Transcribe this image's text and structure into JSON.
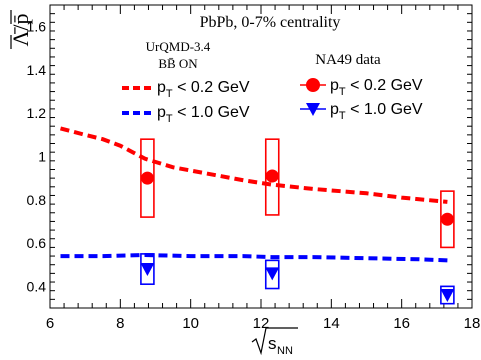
{
  "chart_data": {
    "type": "line",
    "title": "PbPb, 0-7% centrality",
    "ylabel": "Λ̄/p̄",
    "xlabel": "√s_NN",
    "xlim": [
      6,
      18
    ],
    "ylim": [
      0.3,
      1.7
    ],
    "x_ticks": [
      6,
      8,
      10,
      12,
      14,
      16,
      18
    ],
    "y_ticks": [
      0.4,
      0.6,
      0.8,
      1,
      1.2,
      1.4,
      1.6
    ],
    "grid": false,
    "model_legend": {
      "title_line1": "UrQMD-3.4",
      "title_line2": "BB̄ ON",
      "entries": [
        {
          "label_main": "p",
          "label_sub": "T",
          "label_rest": " < 0.2 GeV",
          "color": "#ff0000"
        },
        {
          "label_main": "p",
          "label_sub": "T",
          "label_rest": " < 1.0 GeV",
          "color": "#0000ff"
        }
      ]
    },
    "data_legend": {
      "title": "NA49 data",
      "entries": [
        {
          "label_main": "p",
          "label_sub": "T",
          "label_rest": " < 0.2 GeV",
          "color": "#ff0000",
          "marker": "circle"
        },
        {
          "label_main": "p",
          "label_sub": "T",
          "label_rest": " < 1.0 GeV",
          "color": "#0000ff",
          "marker": "triangle-down"
        }
      ]
    },
    "series": [
      {
        "kind": "model-curve",
        "color": "#ff0000",
        "x": [
          6.3,
          7.0,
          7.5,
          8.0,
          8.7,
          9.5,
          10.5,
          11.5,
          12.3,
          13.5,
          15.0,
          16.0,
          17.3
        ],
        "y": [
          1.13,
          1.1,
          1.08,
          1.05,
          0.99,
          0.95,
          0.92,
          0.89,
          0.87,
          0.85,
          0.83,
          0.81,
          0.79
        ]
      },
      {
        "kind": "model-curve",
        "color": "#0000ff",
        "x": [
          6.3,
          7.5,
          8.7,
          10.0,
          11.5,
          12.3,
          13.5,
          15.0,
          16.5,
          17.3
        ],
        "y": [
          0.54,
          0.54,
          0.545,
          0.54,
          0.54,
          0.535,
          0.535,
          0.53,
          0.525,
          0.52
        ]
      },
      {
        "kind": "data-points",
        "color": "#ff0000",
        "marker": "circle",
        "x": [
          8.77,
          12.32,
          17.3
        ],
        "y": [
          0.9,
          0.91,
          0.71
        ],
        "sys_low": [
          0.72,
          0.73,
          0.58
        ],
        "sys_high": [
          1.08,
          1.08,
          0.84
        ]
      },
      {
        "kind": "data-points",
        "color": "#0000ff",
        "marker": "triangle-down",
        "x": [
          8.77,
          12.32,
          17.3
        ],
        "y": [
          0.48,
          0.46,
          0.36
        ],
        "sys_low": [
          0.41,
          0.39,
          0.32
        ],
        "sys_high": [
          0.55,
          0.52,
          0.4
        ]
      }
    ]
  }
}
